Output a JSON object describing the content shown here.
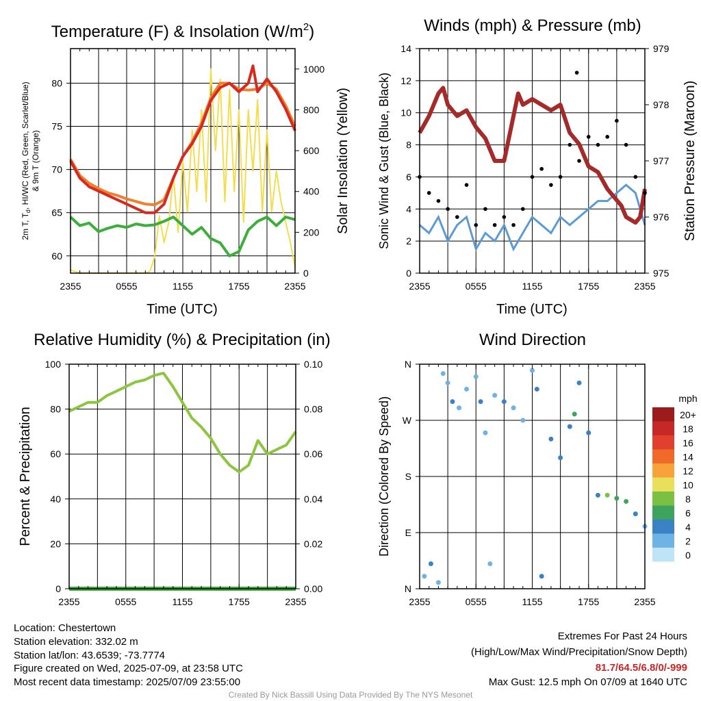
{
  "panels": {
    "temperature": {
      "title_main": "Temperature (F) & Insolation (W/m",
      "title_sup": "2",
      "title_end": ")",
      "ylabel_left_line1": "2m T, T",
      "ylabel_left_sub": "d",
      "ylabel_left_line1_rest": ", HI/WC (Red, Green, Scarlet/Blue)",
      "ylabel_left_line2": "& 9m T (Orange)",
      "ylabel_right": "Solar Insolation (Yellow)",
      "xlabel": "Time (UTC)"
    },
    "winds": {
      "title": "Winds (mph) & Pressure (mb)",
      "ylabel_left": "Sonic Wind & Gust (Blue, Black)",
      "ylabel_right": "Station Pressure (Maroon)",
      "xlabel": "Time (UTC)"
    },
    "humidity": {
      "title": "Relative Humidity (%) & Precipitation (in)",
      "ylabel_left": "Percent & Precipitation"
    },
    "direction": {
      "title": "Wind Direction",
      "ylabel_left": "Direction (Colored By Speed)",
      "legend_unit": "mph",
      "legend_labels": [
        "20+",
        "18",
        "16",
        "14",
        "12",
        "10",
        "8",
        "6",
        "4",
        "2",
        "0"
      ],
      "legend_colors": [
        "#9e1b1b",
        "#c62828",
        "#e0402c",
        "#f06a2a",
        "#f9a23c",
        "#e8e05a",
        "#7cc043",
        "#3da35d",
        "#3b82c4",
        "#6fb2e4",
        "#bfe4f7"
      ]
    }
  },
  "x_ticks": [
    "2355",
    "0555",
    "1155",
    "1755",
    "2355"
  ],
  "info": {
    "location": "Location: Chestertown",
    "elevation": "Station elevation: 332.02 m",
    "latlon": "Station lat/lon: 43.6539; -73.7774",
    "created": "Figure created on Wed, 2025-07-09, at 23:58 UTC",
    "recent": "Most recent data timestamp: 2025/07/09 23:55:00"
  },
  "extremes": {
    "title": "Extremes For Past 24 Hours",
    "subtitle": "(High/Low/Max Wind/Precipitation/Snow Depth)",
    "values": "81.7/64.5/6.8/0/-999",
    "values_color": "#c62828",
    "max_gust": "Max Gust: 12.5 mph On 07/09 at 1640 UTC"
  },
  "footer": "Created By Nick Bassill Using Data Provided By The NYS Mesonet",
  "chart_data": [
    {
      "type": "line",
      "panel": "temperature",
      "x_unit": "hours since 2355 UTC",
      "xlim": [
        0,
        24
      ],
      "ylim_left": [
        58,
        84
      ],
      "yticks_left": [
        60,
        65,
        70,
        75,
        80
      ],
      "ylim_right": [
        0,
        1100
      ],
      "yticks_right": [
        0,
        200,
        400,
        600,
        800,
        1000
      ],
      "series": [
        {
          "color": "#d62a1e",
          "axis": "left",
          "x": [
            0,
            1,
            2,
            3,
            4,
            5,
            6,
            7,
            8,
            9,
            10,
            11,
            12,
            13,
            14,
            15,
            16,
            17,
            18,
            19,
            19.5,
            20,
            21,
            22,
            23,
            24
          ],
          "y": [
            71,
            69,
            68,
            67.5,
            67,
            66.5,
            66,
            65.5,
            65,
            65,
            66,
            69,
            71.5,
            73,
            75,
            78,
            79.5,
            80,
            79,
            80,
            82,
            79,
            80.5,
            79,
            77,
            74.5
          ]
        },
        {
          "color": "#f07f2e",
          "axis": "left",
          "x": [
            0,
            1,
            2,
            3,
            4,
            5,
            6,
            7,
            8,
            9,
            10,
            11,
            12,
            13,
            14,
            15,
            16,
            17,
            18,
            19,
            20,
            21,
            22,
            23,
            24
          ],
          "y": [
            71.2,
            69.3,
            68.4,
            67.8,
            67.3,
            67,
            66.6,
            66.3,
            66,
            65.9,
            66.5,
            69,
            71.5,
            73.2,
            75.4,
            78.3,
            80,
            80,
            79.3,
            79.2,
            79.3,
            80,
            79.3,
            77.4,
            75
          ]
        },
        {
          "color": "#3cae3a",
          "axis": "left",
          "x": [
            0,
            1,
            2,
            3,
            4,
            5,
            6,
            7,
            8,
            9,
            10,
            11,
            12,
            13,
            14,
            15,
            16,
            17,
            18,
            19,
            20,
            21,
            22,
            23,
            24
          ],
          "y": [
            64.5,
            63.5,
            63.8,
            62.8,
            63.2,
            63.5,
            63.3,
            63.7,
            63.5,
            63.6,
            64,
            64.5,
            63.5,
            62.5,
            63.3,
            62,
            61.5,
            60,
            60.5,
            63,
            64,
            64.5,
            63.5,
            64.5,
            64.2
          ]
        },
        {
          "color": "#f4dd4c",
          "axis": "right",
          "x": [
            0,
            1,
            2,
            3,
            4,
            5,
            6,
            7,
            8,
            8.5,
            9,
            9.5,
            10,
            10.5,
            11,
            11.5,
            12,
            12.5,
            13,
            13.5,
            14,
            14.5,
            15,
            15.5,
            16,
            16.5,
            17,
            17.5,
            18,
            18.5,
            19,
            19.5,
            20,
            20.5,
            21,
            21.5,
            22,
            22.5,
            23,
            23.5,
            24
          ],
          "y": [
            15,
            0,
            0,
            0,
            0,
            0,
            0,
            0,
            0,
            10,
            80,
            280,
            150,
            250,
            480,
            200,
            550,
            300,
            700,
            400,
            800,
            350,
            1000,
            600,
            950,
            350,
            900,
            400,
            800,
            250,
            800,
            500,
            850,
            300,
            700,
            300,
            500,
            350,
            250,
            150,
            30
          ]
        }
      ]
    },
    {
      "type": "line",
      "panel": "winds",
      "x_unit": "hours since 2355 UTC",
      "xlim": [
        0,
        24
      ],
      "ylim_left": [
        0,
        14
      ],
      "yticks_left": [
        0,
        2,
        4,
        6,
        8,
        10,
        12,
        14
      ],
      "ylim_right": [
        975,
        979
      ],
      "yticks_right": [
        975,
        976,
        977,
        978,
        979
      ],
      "series": [
        {
          "color": "#a52a2a",
          "axis": "right",
          "x": [
            0,
            1,
            2,
            2.5,
            3,
            4,
            5,
            6,
            7,
            8,
            9,
            10,
            10.5,
            11,
            12,
            13,
            14,
            15,
            16,
            17,
            18,
            19,
            20,
            21,
            21.5,
            22,
            23,
            23.5,
            24
          ],
          "y": [
            977.5,
            977.8,
            978.2,
            978.3,
            978.0,
            977.8,
            977.9,
            977.6,
            977.4,
            977.0,
            977.0,
            977.8,
            978.2,
            978.0,
            978.1,
            978.0,
            977.9,
            978.0,
            977.5,
            977.3,
            976.9,
            976.8,
            976.5,
            976.3,
            976.2,
            976.0,
            975.9,
            976.0,
            976.5
          ]
        },
        {
          "color": "#5b9bd5",
          "axis": "left",
          "x": [
            0,
            1,
            2,
            3,
            4,
            5,
            6,
            7,
            8,
            9,
            10,
            11,
            12,
            13,
            14,
            15,
            16,
            17,
            18,
            19,
            20,
            21,
            22,
            23,
            24
          ],
          "y": [
            3,
            2.5,
            3.5,
            2,
            3,
            3.5,
            1.5,
            2.5,
            2,
            3,
            1.5,
            2.5,
            3.5,
            3,
            2.5,
            3.5,
            3,
            3.5,
            4,
            4.5,
            4.5,
            5,
            5.5,
            5,
            3
          ]
        },
        {
          "color": "#000000",
          "axis": "left",
          "marker": "dot",
          "x": [
            0,
            1,
            2,
            3,
            4,
            5,
            6,
            7,
            8,
            9,
            10,
            11,
            12,
            13,
            14,
            15,
            16,
            16.75,
            17,
            18,
            19,
            20,
            21,
            22,
            23,
            24
          ],
          "y": [
            6,
            5,
            4.5,
            4,
            3.5,
            5.5,
            3,
            4,
            3,
            3.5,
            3,
            4,
            6,
            6.5,
            5.5,
            6,
            8,
            12.5,
            7,
            8.5,
            8,
            8.5,
            9.5,
            8,
            6,
            5
          ]
        }
      ]
    },
    {
      "type": "line",
      "panel": "humidity",
      "x_unit": "hours since 2355 UTC",
      "xlim": [
        0,
        24
      ],
      "ylim_left": [
        0,
        100
      ],
      "yticks_left": [
        0,
        20,
        40,
        60,
        80,
        100
      ],
      "ylim_right": [
        0,
        0.1
      ],
      "yticks_right": [
        "0.00",
        "0.02",
        "0.04",
        "0.06",
        "0.08",
        "0.10"
      ],
      "series": [
        {
          "color": "#8cc63f",
          "axis": "left",
          "x": [
            0,
            1,
            2,
            3,
            4,
            5,
            6,
            7,
            8,
            9,
            10,
            11,
            12,
            13,
            14,
            15,
            16,
            17,
            18,
            19,
            20,
            21,
            22,
            23,
            24
          ],
          "y": [
            79,
            81,
            83,
            83,
            86,
            88,
            90,
            92,
            93,
            95,
            96,
            90,
            83,
            76,
            72,
            67,
            60,
            55,
            52,
            55,
            66,
            60,
            62,
            64,
            70
          ]
        },
        {
          "color": "#3cae3a",
          "axis": "right",
          "x": [
            0,
            24
          ],
          "y": [
            0,
            0
          ]
        }
      ]
    },
    {
      "type": "scatter",
      "panel": "direction",
      "x_unit": "hours since 2355 UTC",
      "xlim": [
        0,
        24
      ],
      "y_unit": "degrees",
      "ylim": [
        0,
        360
      ],
      "yticks": [
        "N",
        "E",
        "S",
        "W",
        "N"
      ],
      "points": [
        {
          "x": 0.5,
          "y": 20,
          "s": 2
        },
        {
          "x": 1.2,
          "y": 40,
          "s": 3
        },
        {
          "x": 2,
          "y": 10,
          "s": 2
        },
        {
          "x": 2.5,
          "y": 345,
          "s": 1
        },
        {
          "x": 3,
          "y": 330,
          "s": 2
        },
        {
          "x": 3.5,
          "y": 300,
          "s": 3
        },
        {
          "x": 4.2,
          "y": 290,
          "s": 2
        },
        {
          "x": 5,
          "y": 320,
          "s": 2
        },
        {
          "x": 6,
          "y": 340,
          "s": 1
        },
        {
          "x": 6.5,
          "y": 300,
          "s": 3
        },
        {
          "x": 7,
          "y": 250,
          "s": 2
        },
        {
          "x": 7.5,
          "y": 40,
          "s": 1
        },
        {
          "x": 8,
          "y": 310,
          "s": 2
        },
        {
          "x": 9,
          "y": 300,
          "s": 3
        },
        {
          "x": 10,
          "y": 290,
          "s": 2
        },
        {
          "x": 11,
          "y": 270,
          "s": 2
        },
        {
          "x": 12,
          "y": 350,
          "s": 2
        },
        {
          "x": 12.5,
          "y": 320,
          "s": 3
        },
        {
          "x": 13,
          "y": 20,
          "s": 3
        },
        {
          "x": 14,
          "y": 240,
          "s": 3
        },
        {
          "x": 15,
          "y": 210,
          "s": 3
        },
        {
          "x": 16,
          "y": 260,
          "s": 4
        },
        {
          "x": 16.5,
          "y": 280,
          "s": 6
        },
        {
          "x": 17,
          "y": 330,
          "s": 3
        },
        {
          "x": 18,
          "y": 250,
          "s": 4
        },
        {
          "x": 19,
          "y": 150,
          "s": 4
        },
        {
          "x": 20,
          "y": 150,
          "s": 7
        },
        {
          "x": 21,
          "y": 145,
          "s": 6
        },
        {
          "x": 22,
          "y": 140,
          "s": 5
        },
        {
          "x": 23,
          "y": 120,
          "s": 4
        },
        {
          "x": 24,
          "y": 100,
          "s": 2
        }
      ]
    }
  ]
}
